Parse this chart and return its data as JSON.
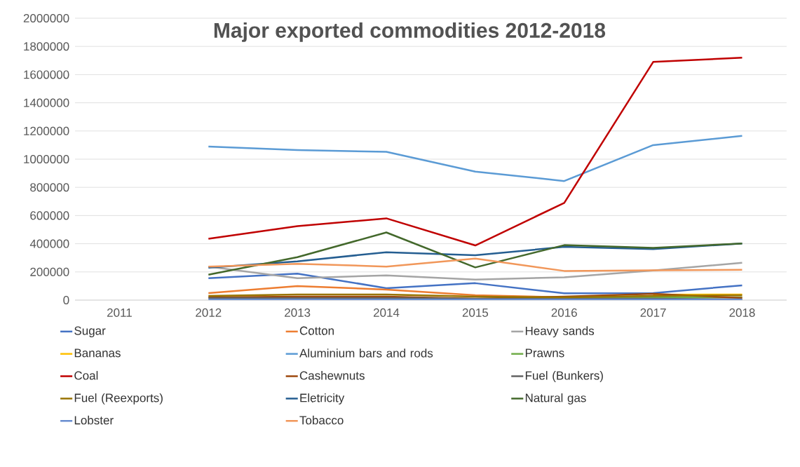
{
  "chart_data": {
    "type": "line",
    "title": "Major exported commodities 2012-2018",
    "categories": [
      "2011",
      "2012",
      "2013",
      "2014",
      "2015",
      "2016",
      "2017",
      "2018"
    ],
    "series": [
      {
        "name": "Sugar",
        "color": "#4472c4",
        "values": [
          null,
          155000,
          188000,
          85000,
          120000,
          48000,
          50000,
          105000
        ]
      },
      {
        "name": "Cotton",
        "color": "#ed7d31",
        "values": [
          null,
          50000,
          100000,
          75000,
          35000,
          20000,
          20000,
          20000
        ]
      },
      {
        "name": "Heavy sands",
        "color": "#a5a5a5",
        "values": [
          null,
          238000,
          156000,
          175000,
          145000,
          162000,
          210000,
          265000
        ]
      },
      {
        "name": "Bananas",
        "color": "#ffc000",
        "values": [
          null,
          null,
          null,
          null,
          null,
          null,
          38000,
          40000
        ]
      },
      {
        "name": "Aluminium bars and rods",
        "color": "#5b9bd5",
        "values": [
          null,
          1090000,
          1065000,
          1052000,
          912000,
          845000,
          1100000,
          1165000
        ]
      },
      {
        "name": "Prawns",
        "color": "#70ad47",
        "values": [
          null,
          null,
          null,
          null,
          null,
          15000,
          18000,
          20000
        ]
      },
      {
        "name": "Coal",
        "color": "#c00000",
        "values": [
          null,
          435000,
          525000,
          580000,
          388000,
          690000,
          1690000,
          1720000
        ]
      },
      {
        "name": "Cashewnuts",
        "color": "#9e480e",
        "values": [
          null,
          20000,
          25000,
          25000,
          10000,
          25000,
          45000,
          15000
        ]
      },
      {
        "name": "Fuel  (Bunkers)",
        "color": "#636363",
        "values": [
          null,
          15000,
          15000,
          15000,
          10000,
          10000,
          10000,
          5000
        ]
      },
      {
        "name": "Fuel (Reexports)",
        "color": "#997300",
        "values": [
          null,
          30000,
          40000,
          40000,
          25000,
          20000,
          30000,
          35000
        ]
      },
      {
        "name": "Eletricity",
        "color": "#255e91",
        "values": [
          null,
          230000,
          275000,
          340000,
          318000,
          378000,
          362000,
          402000
        ]
      },
      {
        "name": "Natural gas",
        "color": "#43682b",
        "values": [
          null,
          180000,
          305000,
          480000,
          232000,
          390000,
          370000,
          402000
        ]
      },
      {
        "name": "Lobster",
        "color": "#698ed0",
        "values": [
          null,
          5000,
          5000,
          5000,
          5000,
          5000,
          5000,
          5000
        ]
      },
      {
        "name": "Tobacco",
        "color": "#f1975a",
        "values": [
          null,
          238000,
          258000,
          238000,
          295000,
          207000,
          212000,
          215000
        ]
      }
    ],
    "ylim": [
      0,
      2000000
    ],
    "yticks": [
      0,
      200000,
      400000,
      600000,
      800000,
      1000000,
      1200000,
      1400000,
      1600000,
      1800000,
      2000000
    ],
    "grid": "y",
    "legend": "bottom",
    "marker": "none",
    "line_style": "solid"
  }
}
